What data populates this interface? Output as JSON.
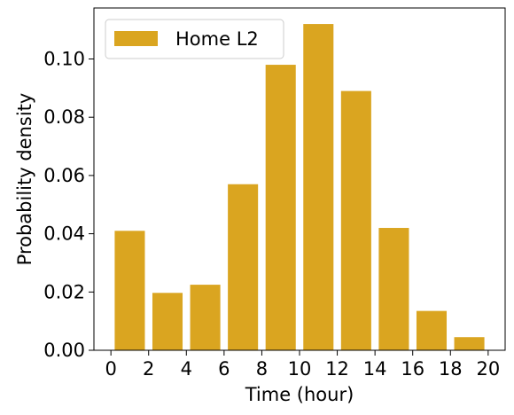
{
  "chart_data": {
    "type": "bar",
    "xlabel": "Time (hour)",
    "ylabel": "Probability density",
    "xlim": [
      -0.9,
      20.9
    ],
    "ylim": [
      0,
      0.1175
    ],
    "xticks": [
      0,
      2,
      4,
      6,
      8,
      10,
      12,
      14,
      16,
      18,
      20
    ],
    "yticks": [
      0.0,
      0.02,
      0.04,
      0.06,
      0.08,
      0.1
    ],
    "ytick_labels": [
      "0.00",
      "0.02",
      "0.04",
      "0.06",
      "0.08",
      "0.10"
    ],
    "bar_width": 1.6,
    "color": "#DAA520",
    "legend": {
      "placement": "top-left",
      "entries": [
        "Home L2"
      ]
    },
    "grid": false,
    "series": [
      {
        "name": "Home L2",
        "x": [
          1,
          3,
          5,
          7,
          9,
          11,
          13,
          15,
          17,
          19
        ],
        "values": [
          0.041,
          0.0197,
          0.0225,
          0.057,
          0.098,
          0.112,
          0.089,
          0.042,
          0.0135,
          0.0045
        ]
      }
    ]
  }
}
